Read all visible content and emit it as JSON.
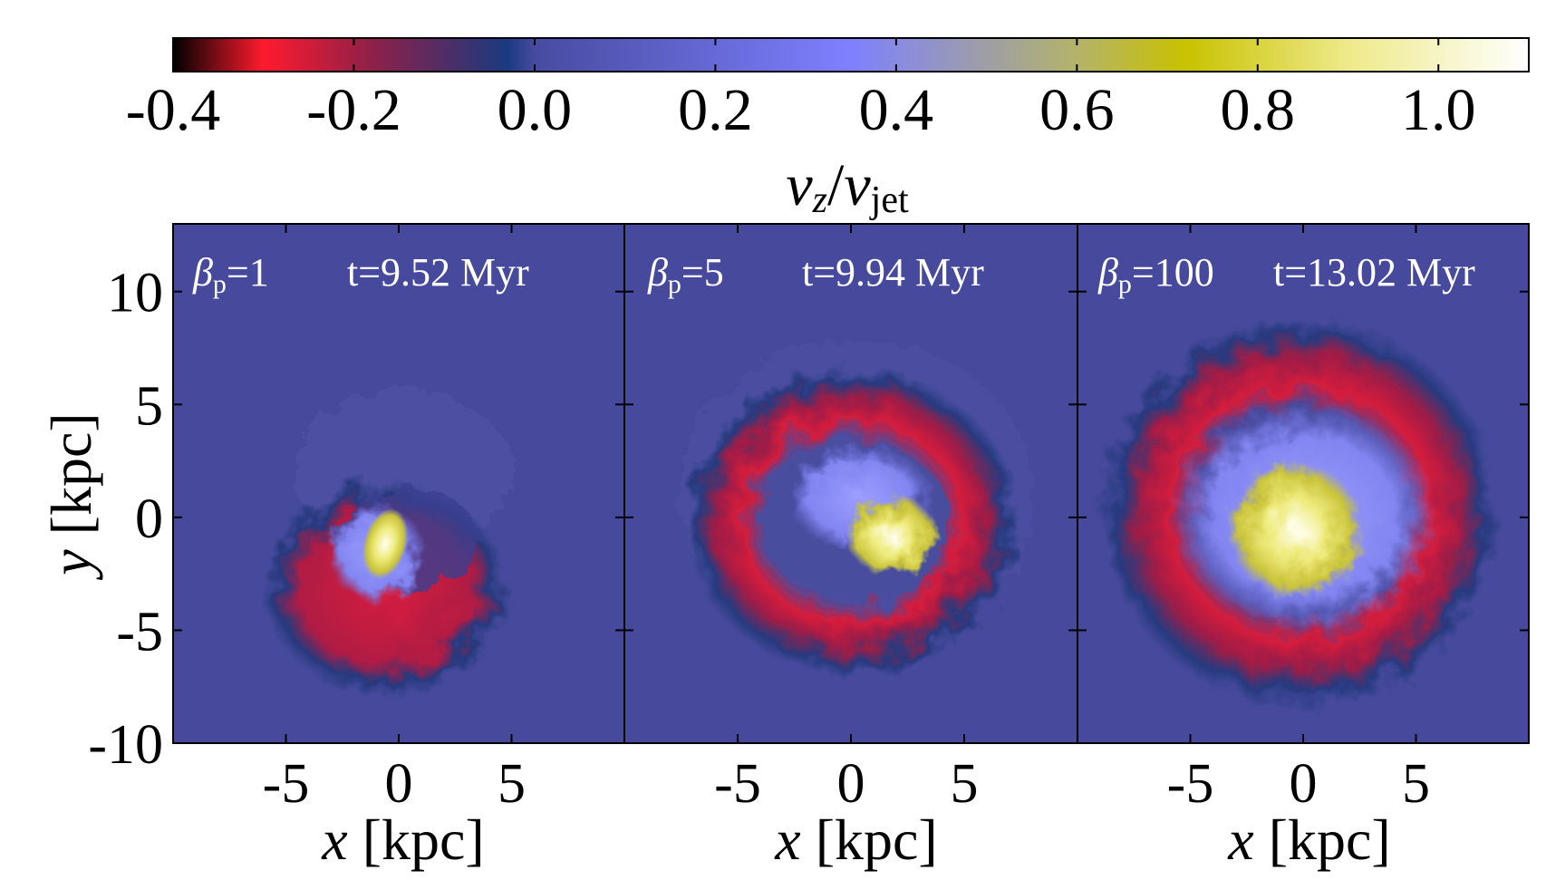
{
  "colorbar": {
    "ticks": [
      "-0.4",
      "-0.2",
      "0.0",
      "0.2",
      "0.4",
      "0.6",
      "0.8",
      "1.0"
    ],
    "tick_values": [
      -0.4,
      -0.2,
      0.0,
      0.2,
      0.4,
      0.6,
      0.8,
      1.0
    ],
    "range": [
      -0.4,
      1.1
    ],
    "label_main": "v",
    "label_sub1": "z",
    "label_slash": "/",
    "label_main2": "v",
    "label_sub2": "jet",
    "stops": [
      {
        "v": -0.4,
        "color": "#000000"
      },
      {
        "v": -0.3,
        "color": "#ff1a2e"
      },
      {
        "v": -0.18,
        "color": "#8e2048"
      },
      {
        "v": -0.03,
        "color": "#1a3a80"
      },
      {
        "v": 0.0,
        "color": "#474ba0"
      },
      {
        "v": 0.35,
        "color": "#7e80ff"
      },
      {
        "v": 0.6,
        "color": "#b4b36a"
      },
      {
        "v": 0.72,
        "color": "#c8c200"
      },
      {
        "v": 0.9,
        "color": "#eeea8a"
      },
      {
        "v": 1.1,
        "color": "#ffffff"
      }
    ]
  },
  "axes": {
    "x_ticks": [
      "-5",
      "0",
      "5"
    ],
    "x_tick_values": [
      -5,
      0,
      5
    ],
    "y_ticks": [
      "10",
      "5",
      "0",
      "-5",
      "-10"
    ],
    "y_tick_values": [
      10,
      5,
      0,
      -5,
      -10
    ],
    "x_label_var": "x",
    "x_label_unit": "[kpc]",
    "y_label_var": "y",
    "y_label_unit": "[kpc]",
    "xlim": [
      -10,
      10
    ],
    "ylim": [
      -10,
      13
    ]
  },
  "chart_data": {
    "type": "heatmap",
    "quantity": "v_z / v_jet",
    "xlabel": "x [kpc]",
    "ylabel": "y [kpc]",
    "xlim": [
      -10,
      10
    ],
    "ylim": [
      -10,
      13
    ],
    "color_range": [
      -0.4,
      1.1
    ],
    "panels": [
      {
        "beta_sym": "β",
        "beta_sub": "p",
        "beta_val": "=1",
        "time": "t=9.52 Myr",
        "structure": {
          "outer_radius_kpc": 5.2,
          "outer_center": [
            -0.5,
            -2.5
          ],
          "core_center": [
            -0.5,
            -1.0
          ],
          "core_radius_kpc": 1.2
        }
      },
      {
        "beta_sym": "β",
        "beta_sub": "p",
        "beta_val": "=5",
        "time": "t=9.94 Myr",
        "structure": {
          "outer_radius_kpc": 6.5,
          "outer_center": [
            0.0,
            -0.5
          ],
          "core_center": [
            1.5,
            -1.2
          ],
          "core_radius_kpc": 1.7
        }
      },
      {
        "beta_sym": "β",
        "beta_sub": "p",
        "beta_val": "=100",
        "time": "t=13.02 Myr",
        "structure": {
          "outer_radius_kpc": 8.2,
          "outer_center": [
            0.0,
            0.0
          ],
          "core_center": [
            0.0,
            0.5
          ],
          "core_radius_kpc": 1.8
        }
      }
    ]
  }
}
